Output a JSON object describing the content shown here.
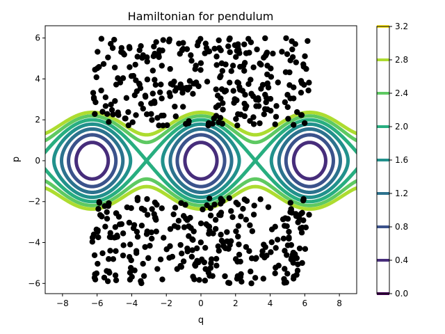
{
  "chart_data": {
    "type": "contour",
    "title": "Hamiltonian for pendulum",
    "xlabel": "q",
    "ylabel": "p",
    "xlim": [
      -9,
      9
    ],
    "ylim": [
      -6.5,
      6.6
    ],
    "xticks": [
      -8,
      -6,
      -4,
      -2,
      0,
      2,
      4,
      6,
      8
    ],
    "yticks": [
      -6,
      -4,
      -2,
      0,
      2,
      4,
      6
    ],
    "grid": false,
    "contour_function": "H(q,p) = p^2/2 + 1 - cos(q)",
    "contour_levels": [
      0.4,
      0.8,
      1.2,
      1.6,
      2.0,
      2.4,
      2.8
    ],
    "colorbar": {
      "range": [
        0,
        3.2
      ],
      "ticks": [
        "0.0",
        "0.4",
        "0.8",
        "1.2",
        "1.6",
        "2.0",
        "2.4",
        "2.8",
        "3.2"
      ],
      "colors": [
        "#440154",
        "#472d7b",
        "#3b528b",
        "#2c728e",
        "#21918c",
        "#28ae80",
        "#5ec962",
        "#addc30",
        "#fde725"
      ]
    },
    "scatter": {
      "color": "#000000",
      "point_count": 600,
      "regions": [
        {
          "x_range": [
            -6.3,
            6.3
          ],
          "y_range": [
            1.7,
            6.0
          ]
        },
        {
          "x_range": [
            -6.3,
            6.3
          ],
          "y_range": [
            -6.0,
            -1.7
          ]
        }
      ]
    }
  }
}
